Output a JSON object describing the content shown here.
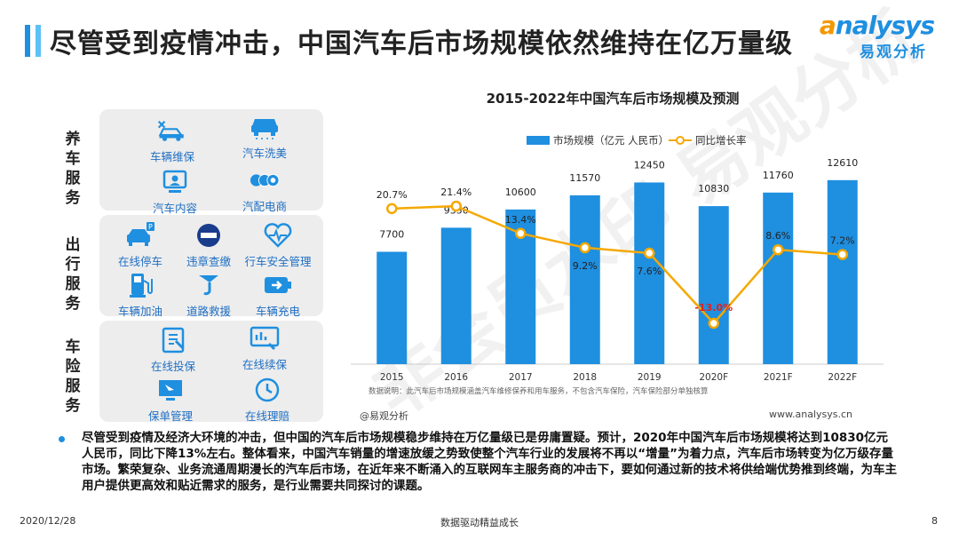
{
  "header": {
    "title": "尽管受到疫情冲击，中国汽车后市场规模依然维持在亿万量级",
    "logo_en": "nalysys",
    "logo_en_initial": "a",
    "logo_cn": "易观分析"
  },
  "left_panel": {
    "groups": [
      {
        "label": "养\n车\n服\n务",
        "items": [
          "车辆维保",
          "汽车洗美",
          "汽车内容",
          "汽配电商"
        ]
      },
      {
        "label": "出\n行\n服\n务",
        "items": [
          "在线停车",
          "违章查缴",
          "行车安全管理",
          "车辆加油",
          "道路救援",
          "车辆充电"
        ]
      },
      {
        "label": "车\n险\n服\n务",
        "items": [
          "在线投保",
          "在线续保",
          "保单管理",
          "在线理赔"
        ]
      }
    ]
  },
  "chart_data": {
    "type": "bar",
    "title": "2015-2022年中国汽车后市场规模及预测",
    "categories": [
      "2015",
      "2016",
      "2017",
      "2018",
      "2019",
      "2020F",
      "2021F",
      "2022F"
    ],
    "series": [
      {
        "name": "市场规模（亿元 人民币）",
        "type": "bar",
        "values": [
          7700,
          9350,
          10600,
          11570,
          12450,
          10830,
          11760,
          12610
        ],
        "color": "#1f8fe0"
      },
      {
        "name": "同比增长率",
        "type": "line",
        "values": [
          20.7,
          21.4,
          13.4,
          9.2,
          7.6,
          -13.0,
          8.6,
          7.2
        ],
        "labels": [
          "20.7%",
          "21.4%",
          "13.4%",
          "9.2%",
          "7.6%",
          "-13.0%",
          "8.6%",
          "7.2%"
        ],
        "color": "#f5a800"
      }
    ],
    "ylim_bar": [
      0,
      14000
    ],
    "ylim_line": [
      -25,
      35
    ],
    "highlight_color": "#e02020",
    "note": "数据说明：此汽车后市场规模涵盖汽车维修保养和用车服务，不包含汽车保险，汽车保险部分单独核算"
  },
  "source": "@易观分析",
  "site": "www.analysys.cn",
  "watermark": "非会员水印 易观分析",
  "summary": "尽管受到疫情及经济大环境的冲击，但中国的汽车后市场规模稳步维持在万亿量级已是毋庸置疑。预计，2020年中国汽车后市场规模将达到10830亿元人民币，同比下降13%左右。整体看来，中国汽车销量的增速放缓之势致使整个汽车行业的发展将不再以“增量”为着力点，汽车后市场转变为亿万级存量市场。繁荣复杂、业务流通周期漫长的汽车后市场，在近年来不断涌入的互联网车主服务商的冲击下，要如何通过新的技术将供给端优势推到终端，为车主用户提供更高效和贴近需求的服务，是行业需要共同探讨的课题。",
  "footer": {
    "date": "2020/12/28",
    "slogan": "数据驱动精益成长",
    "page": "8"
  },
  "colors": {
    "accent": "#1f8fe0",
    "accent_light": "#5cc1f5",
    "orange": "#f5a800"
  }
}
